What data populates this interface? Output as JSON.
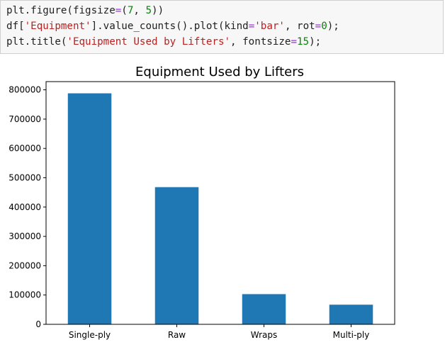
{
  "code": {
    "line1": {
      "a": "plt.figure(figsize",
      "op": "=",
      "b": "(",
      "n1": "7",
      "c": ", ",
      "n2": "5",
      "d": "))"
    },
    "line2": {
      "a": "df[",
      "s1": "'Equipment'",
      "b": "].value_counts().plot(kind",
      "op1": "=",
      "s2": "'bar'",
      "c": ", rot",
      "op2": "=",
      "n1": "0",
      "d": ");"
    },
    "line3": {
      "a": "plt.title(",
      "s1": "'Equipment Used by Lifters'",
      "b": ", fontsize",
      "op": "=",
      "n1": "15",
      "c": ");"
    }
  },
  "colors": {
    "bar": "#1f77b4"
  },
  "chart_data": {
    "type": "bar",
    "title": "Equipment Used by Lifters",
    "categories": [
      "Single-ply",
      "Raw",
      "Wraps",
      "Multi-ply"
    ],
    "values": [
      788000,
      468000,
      103000,
      67000
    ],
    "ylim": [
      0,
      828000
    ],
    "yticks": [
      0,
      100000,
      200000,
      300000,
      400000,
      500000,
      600000,
      700000,
      800000
    ],
    "ytick_labels": [
      "0",
      "100000",
      "200000",
      "300000",
      "400000",
      "500000",
      "600000",
      "700000",
      "800000"
    ],
    "xlabel": "",
    "ylabel": ""
  }
}
